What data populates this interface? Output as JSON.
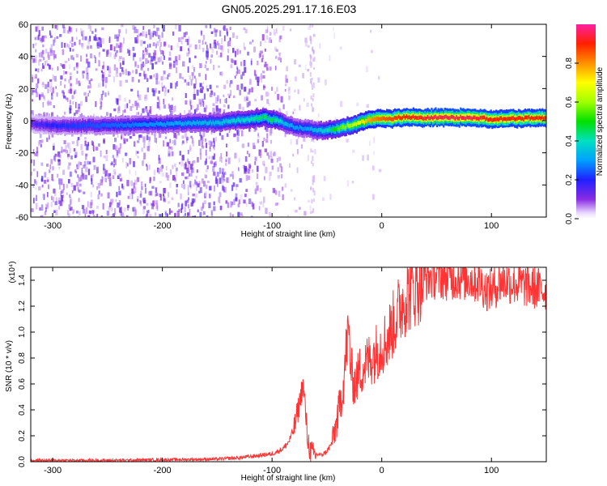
{
  "title": "GN05.2025.291.17.16.E03",
  "colors": {
    "signal": "#ff3333",
    "noise": "#7a1cff",
    "axis": "#000000"
  },
  "chart_data": [
    {
      "type": "heatmap",
      "title": "GN05.2025.291.17.16.E03",
      "xlabel": "Height of straight line (km)",
      "ylabel": "Frequency (Hz)",
      "xlim": [
        -320,
        150
      ],
      "ylim": [
        -60,
        60
      ],
      "x_ticks": [
        -300,
        -200,
        -100,
        0,
        100
      ],
      "x_tick_labels": [
        "-300",
        "-200",
        "-100",
        "0",
        "100"
      ],
      "y_ticks": [
        60,
        40,
        20,
        0,
        -20,
        -40,
        -60
      ],
      "y_tick_labels": [
        "60",
        "40",
        "20",
        "0",
        "-20",
        "-40",
        "-60"
      ],
      "colorbar": {
        "label": "Normalized spectral amplitude",
        "range": [
          0,
          1
        ],
        "ticks": [
          0.0,
          0.2,
          0.4,
          0.6,
          0.8
        ],
        "tick_labels": [
          "0.0",
          "0.2",
          "0.4",
          "0.6",
          "0.8"
        ],
        "colormap": "rainbow"
      },
      "ridge": {
        "description": "dominant frequency trace vs height",
        "height_km": [
          -320,
          -300,
          -250,
          -200,
          -150,
          -120,
          -110,
          -100,
          -90,
          -80,
          -70,
          -60,
          -50,
          -40,
          -30,
          -20,
          -10,
          0,
          20,
          50,
          80,
          100,
          150
        ],
        "frequency_hz": [
          -2,
          -3,
          -3,
          -2,
          -1,
          1,
          2,
          1,
          -1,
          -4,
          -5,
          -6,
          -6,
          -5,
          -3,
          -1,
          1,
          1,
          2,
          2,
          2,
          1,
          2
        ],
        "amplitude": [
          0.15,
          0.2,
          0.25,
          0.3,
          0.35,
          0.4,
          0.45,
          0.45,
          0.35,
          0.3,
          0.3,
          0.35,
          0.4,
          0.55,
          0.6,
          0.7,
          0.8,
          0.85,
          0.9,
          0.95,
          0.95,
          0.9,
          0.9
        ]
      },
      "noise_region_km": [
        -320,
        -60
      ]
    },
    {
      "type": "line",
      "xlabel": "Height of straight line (km)",
      "ylabel": "SNR (10 * v/v)",
      "y_scale_label": "(x10⁴)",
      "xlim": [
        -320,
        150
      ],
      "ylim": [
        0,
        1.5
      ],
      "x_ticks": [
        -300,
        -200,
        -100,
        0,
        100
      ],
      "x_tick_labels": [
        "-300",
        "-200",
        "-100",
        "0",
        "100"
      ],
      "y_ticks": [
        0.0,
        0.2,
        0.4,
        0.6,
        0.8,
        1.0,
        1.2,
        1.4
      ],
      "y_tick_labels": [
        "0.0",
        "0.2",
        "0.4",
        "0.6",
        "0.8",
        "1.0",
        "1.2",
        "1.4"
      ],
      "series": [
        {
          "name": "SNR",
          "x": [
            -320,
            -250,
            -200,
            -150,
            -130,
            -120,
            -110,
            -100,
            -95,
            -90,
            -85,
            -80,
            -75,
            -72,
            -70,
            -68,
            -65,
            -62,
            -60,
            -55,
            -50,
            -45,
            -40,
            -35,
            -32,
            -30,
            -28,
            -25,
            -22,
            -20,
            -15,
            -10,
            -5,
            0,
            5,
            10,
            15,
            20,
            30,
            40,
            50,
            60,
            70,
            80,
            90,
            95,
            100,
            110,
            120,
            130,
            140,
            150
          ],
          "y": [
            0.01,
            0.01,
            0.015,
            0.02,
            0.03,
            0.04,
            0.05,
            0.06,
            0.08,
            0.1,
            0.15,
            0.25,
            0.45,
            0.6,
            0.45,
            0.2,
            0.08,
            0.05,
            0.06,
            0.05,
            0.08,
            0.15,
            0.35,
            0.6,
            0.9,
            1.0,
            0.7,
            0.6,
            0.65,
            0.7,
            0.75,
            0.8,
            0.85,
            0.9,
            0.95,
            1.05,
            1.15,
            1.25,
            1.35,
            1.42,
            1.43,
            1.42,
            1.42,
            1.41,
            1.38,
            1.33,
            1.32,
            1.4,
            1.38,
            1.36,
            1.34,
            1.32
          ]
        }
      ]
    }
  ]
}
